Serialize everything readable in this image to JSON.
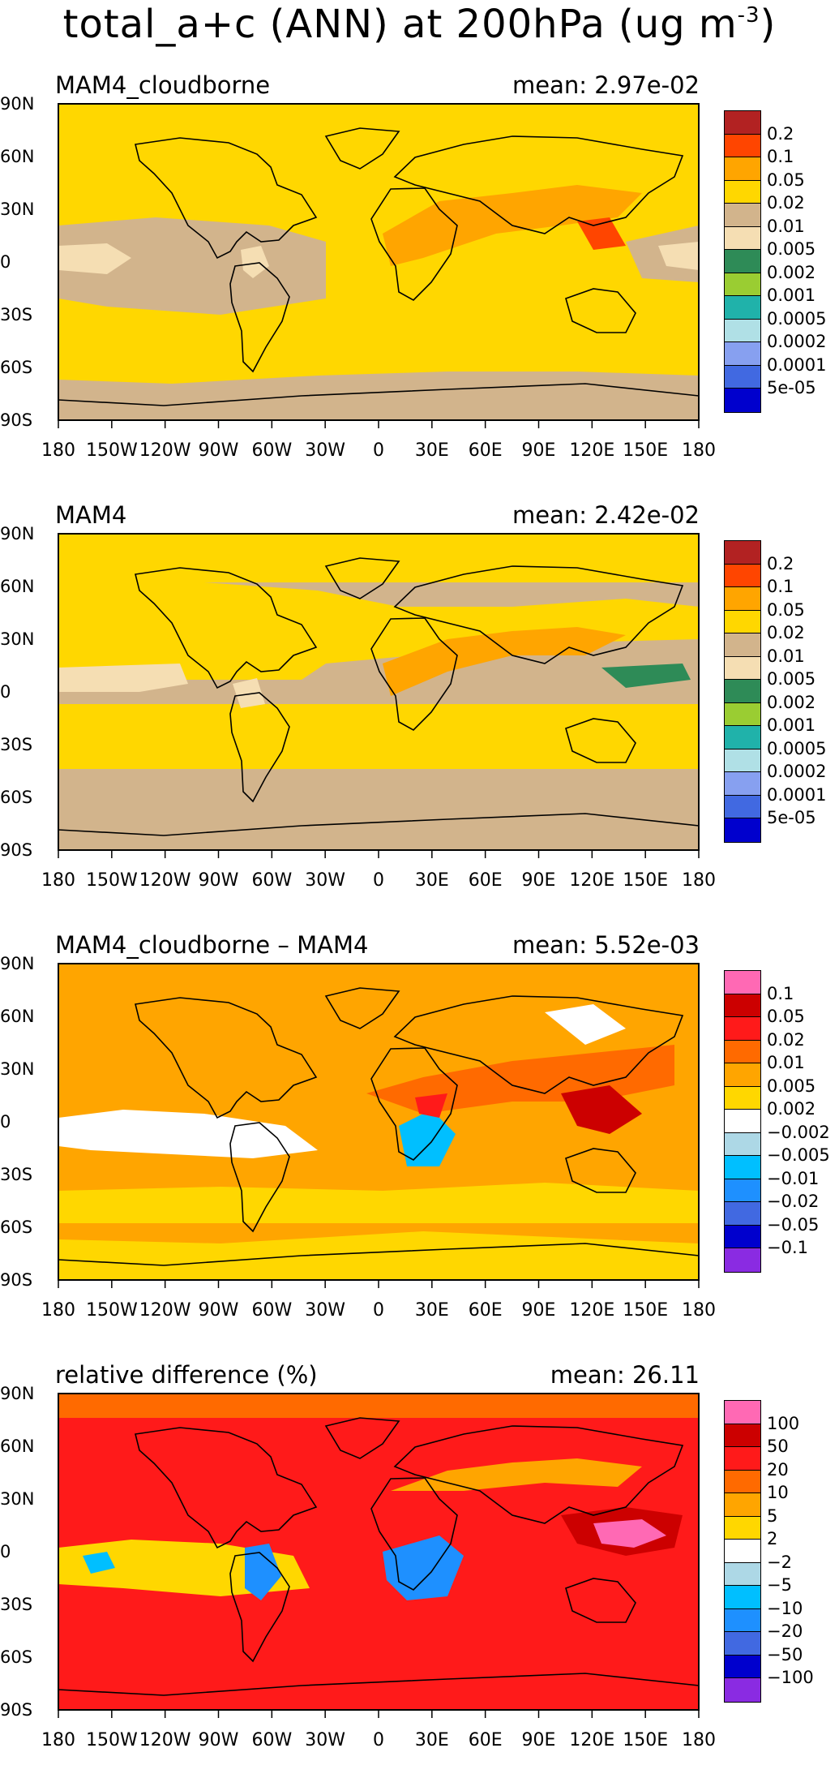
{
  "figure_title": "total_a+c (ANN) at 200hPa (ug m",
  "figure_title_exp": "-3",
  "figure_title_close": ")",
  "lat_labels": [
    "90N",
    "60N",
    "30N",
    "0",
    "30S",
    "60S",
    "90S"
  ],
  "lon_labels": [
    "180",
    "150W",
    "120W",
    "90W",
    "60W",
    "30W",
    "0",
    "30E",
    "60E",
    "90E",
    "120E",
    "150E",
    "180"
  ],
  "panels": [
    {
      "title": "MAM4_cloudborne",
      "mean": "mean: 2.97e-02",
      "dominant_color": "#ffd700",
      "levels": [
        "0.2",
        "0.1",
        "0.05",
        "0.02",
        "0.01",
        "0.005",
        "0.002",
        "0.001",
        "0.0005",
        "0.0002",
        "0.0001",
        "5e-05"
      ],
      "colors": [
        "#b22222",
        "#ff4500",
        "#ffa500",
        "#ffd700",
        "#d2b48c",
        "#f5deb3",
        "#2e8b57",
        "#9acd32",
        "#20b2aa",
        "#b0e0e6",
        "#87a0f0",
        "#4169e1",
        "#0000cd"
      ]
    },
    {
      "title": "MAM4",
      "mean": "mean: 2.42e-02",
      "dominant_color": "#d2b48c",
      "levels": [
        "0.2",
        "0.1",
        "0.05",
        "0.02",
        "0.01",
        "0.005",
        "0.002",
        "0.001",
        "0.0005",
        "0.0002",
        "0.0001",
        "5e-05"
      ],
      "colors": [
        "#b22222",
        "#ff4500",
        "#ffa500",
        "#ffd700",
        "#d2b48c",
        "#f5deb3",
        "#2e8b57",
        "#9acd32",
        "#20b2aa",
        "#b0e0e6",
        "#87a0f0",
        "#4169e1",
        "#0000cd"
      ]
    },
    {
      "title": "MAM4_cloudborne – MAM4",
      "mean": "mean: 5.52e-03",
      "dominant_color": "#ffa500",
      "levels": [
        "0.1",
        "0.05",
        "0.02",
        "0.01",
        "0.005",
        "0.002",
        "−0.002",
        "−0.005",
        "−0.01",
        "−0.02",
        "−0.05",
        "−0.1"
      ],
      "colors": [
        "#ff69b4",
        "#cc0000",
        "#ff1a1a",
        "#ff6a00",
        "#ffa500",
        "#ffd700",
        "#ffffff",
        "#add8e6",
        "#00bfff",
        "#1e90ff",
        "#4169e1",
        "#0000cd",
        "#8a2be2"
      ]
    },
    {
      "title": "relative difference (%)",
      "mean": "mean: 26.11",
      "dominant_color": "#ff1a1a",
      "levels": [
        "100",
        "50",
        "20",
        "10",
        "5",
        "2",
        "−2",
        "−5",
        "−10",
        "−20",
        "−50",
        "−100"
      ],
      "colors": [
        "#ff69b4",
        "#cc0000",
        "#ff1a1a",
        "#ff6a00",
        "#ffa500",
        "#ffd700",
        "#ffffff",
        "#add8e6",
        "#00bfff",
        "#1e90ff",
        "#4169e1",
        "#0000cd",
        "#8a2be2"
      ]
    }
  ]
}
